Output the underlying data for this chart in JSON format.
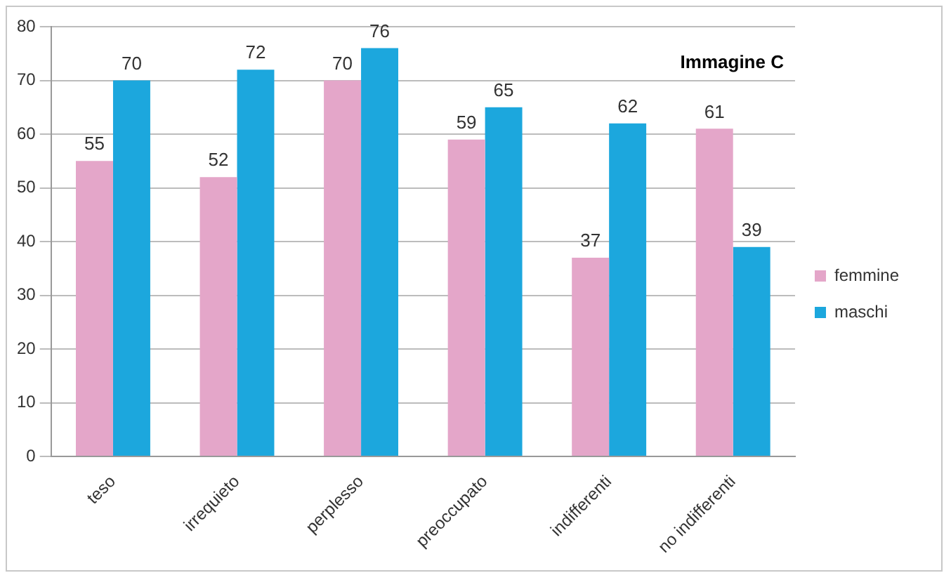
{
  "chart_data": {
    "type": "bar",
    "title": "Immagine C",
    "categories": [
      "teso",
      "irrequieto",
      "perplesso",
      "preoccupato",
      "indifferenti",
      "no indifferenti"
    ],
    "series": [
      {
        "name": "femmine",
        "color": "#e4a6c9",
        "values": [
          55,
          52,
          70,
          59,
          37,
          61
        ]
      },
      {
        "name": "maschi",
        "color": "#1ca7dd",
        "values": [
          70,
          72,
          76,
          65,
          62,
          39
        ]
      }
    ],
    "ylim": [
      0,
      80
    ],
    "yticks": [
      0,
      10,
      20,
      30,
      40,
      50,
      60,
      70,
      80
    ],
    "grid": "y",
    "legend": "right",
    "data_labels": true
  }
}
